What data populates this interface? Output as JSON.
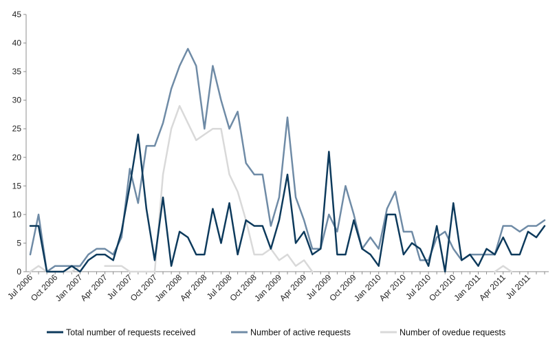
{
  "chart_data": {
    "type": "line",
    "title": "",
    "xlabel": "",
    "ylabel": "",
    "ylim": [
      0,
      45
    ],
    "yticks": [
      0,
      5,
      10,
      15,
      20,
      25,
      30,
      35,
      40,
      45
    ],
    "grid": false,
    "legend_position": "bottom",
    "x": [
      "Jul 2006",
      "Aug 2006",
      "Sep 2006",
      "Oct 2006",
      "Nov 2006",
      "Dec 2006",
      "Jan 2007",
      "Feb 2007",
      "Mar 2007",
      "Apr 2007",
      "May 2007",
      "Jun 2007",
      "Jul 2007",
      "Aug 2007",
      "Sep 2007",
      "Oct 2007",
      "Nov 2007",
      "Dec 2007",
      "Jan 2008",
      "Feb 2008",
      "Mar 2008",
      "Apr 2008",
      "May 2008",
      "Jun 2008",
      "Jul 2008",
      "Aug 2008",
      "Sep 2008",
      "Oct 2008",
      "Nov 2008",
      "Dec 2008",
      "Jan 2009",
      "Feb 2009",
      "Mar 2009",
      "Apr 2009",
      "May 2009",
      "Jun 2009",
      "Jul 2009",
      "Aug 2009",
      "Sep 2009",
      "Oct 2009",
      "Nov 2009",
      "Dec 2009",
      "Jan 2010",
      "Feb 2010",
      "Mar 2010",
      "Apr 2010",
      "May 2010",
      "Jun 2010",
      "Jul 2010",
      "Aug 2010",
      "Sep 2010",
      "Oct 2010",
      "Nov 2010",
      "Dec 2010",
      "Jan 2011",
      "Feb 2011",
      "Mar 2011",
      "Apr 2011",
      "May 2011",
      "Jun 2011",
      "Jul 2011",
      "Aug 2011",
      "Sep 2011"
    ],
    "xtick_labels": [
      "Jul 2006",
      "Oct 2006",
      "Jan 2007",
      "Apr 2007",
      "Jul 2007",
      "Oct 2007",
      "Jan 2008",
      "Apr 2008",
      "Jul 2008",
      "Oct 2008",
      "Jan 2009",
      "Apr 2009",
      "Jul 2009",
      "Oct 2009",
      "Jan 2010",
      "Apr 2010",
      "Jul 2010",
      "Oct 2010",
      "Jan 2011",
      "Apr 2011",
      "Jul 2011"
    ],
    "series": [
      {
        "name": "Total number of requests received",
        "color": "#0d3a5c",
        "values": [
          8,
          8,
          0,
          0,
          0,
          1,
          0,
          2,
          3,
          3,
          2,
          7,
          15,
          24,
          11,
          2,
          13,
          1,
          7,
          6,
          3,
          3,
          11,
          5,
          12,
          3,
          9,
          8,
          8,
          4,
          9,
          17,
          5,
          7,
          3,
          4,
          21,
          3,
          3,
          9,
          4,
          3,
          1,
          10,
          10,
          3,
          5,
          4,
          1,
          8,
          0,
          12,
          2,
          3,
          1,
          4,
          3,
          6,
          3,
          3,
          7,
          6,
          8
        ]
      },
      {
        "name": "Number of active requests",
        "color": "#6f8ba6",
        "values": [
          3,
          10,
          0,
          1,
          1,
          1,
          1,
          3,
          4,
          4,
          3,
          6,
          18,
          12,
          22,
          22,
          26,
          32,
          36,
          39,
          36,
          25,
          36,
          30,
          25,
          28,
          19,
          17,
          17,
          8,
          13,
          27,
          13,
          9,
          4,
          4,
          10,
          7,
          15,
          10,
          4,
          6,
          4,
          11,
          14,
          7,
          7,
          2,
          2,
          6,
          7,
          4,
          2,
          3,
          3,
          3,
          3,
          8,
          8,
          7,
          8,
          8,
          9
        ]
      },
      {
        "name": "Number of ovedue requests",
        "color": "#d9d9d9",
        "values": [
          0,
          1,
          0,
          0,
          0,
          0,
          1,
          null,
          null,
          1,
          1,
          1,
          0,
          0,
          0,
          0,
          17,
          25,
          29,
          26,
          23,
          24,
          25,
          25,
          17,
          14,
          9,
          3,
          3,
          4,
          2,
          3,
          1,
          2,
          0,
          null,
          null,
          null,
          null,
          null,
          null,
          null,
          null,
          null,
          null,
          null,
          null,
          null,
          null,
          null,
          null,
          null,
          null,
          null,
          null,
          null,
          0,
          1,
          0,
          null,
          null,
          null,
          null
        ]
      }
    ]
  }
}
